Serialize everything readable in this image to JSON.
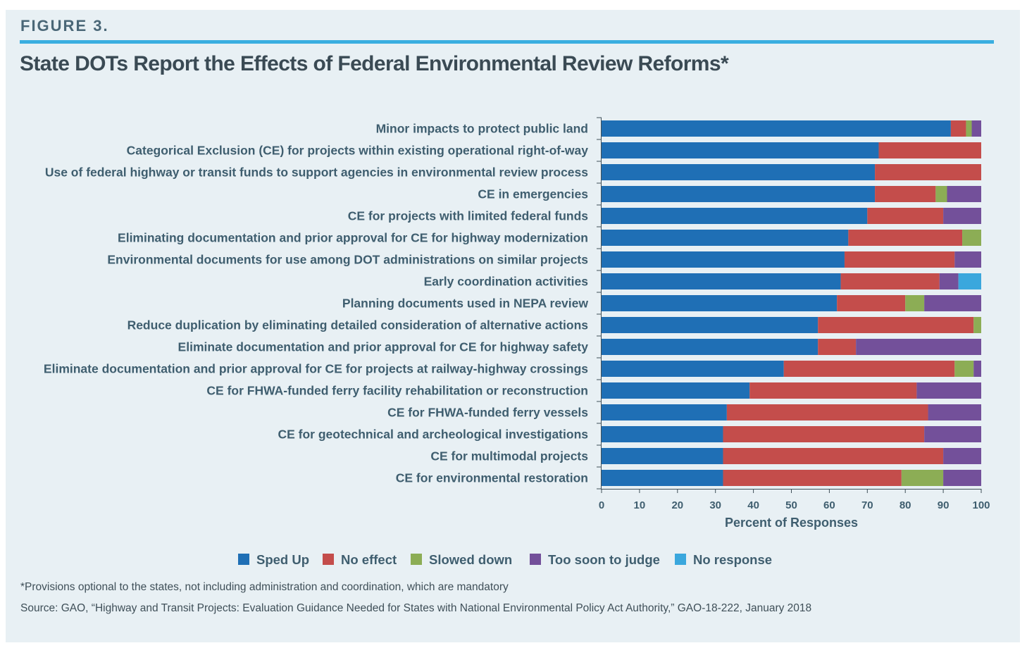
{
  "figure_label": "FIGURE 3.",
  "title": "State DOTs Report the Effects of Federal Environmental Review Reforms*",
  "footnote": "*Provisions optional to the states, not including administration and coordination, which are mandatory",
  "source": "Source: GAO, “Highway and Transit Projects: Evaluation Guidance Needed for States with National Environmental Policy Act Authority,” GAO-18-222, January 2018",
  "chart_data": {
    "type": "bar",
    "orientation": "horizontal",
    "stacked": true,
    "xlabel": "Percent of Responses",
    "xlim": [
      0,
      100
    ],
    "xticks": [
      0,
      10,
      20,
      30,
      40,
      50,
      60,
      70,
      80,
      90,
      100
    ],
    "legend_position": "bottom",
    "categories": [
      "Minor impacts to protect public land",
      "Categorical Exclusion (CE) for projects within existing operational right-of-way",
      "Use of federal highway or transit funds to support agencies in environmental review process",
      "CE in emergencies",
      "CE for projects with limited federal funds",
      "Eliminating documentation and prior approval for CE for highway modernization",
      "Environmental documents for use among DOT administrations on similar projects",
      "Early coordination activities",
      "Planning documents used in NEPA review",
      "Reduce duplication by eliminating detailed consideration of alternative actions",
      "Eliminate documentation and prior approval for CE for highway safety",
      "Eliminate documentation and prior approval for CE for projects at railway-highway crossings",
      "CE for FHWA-funded ferry facility rehabilitation or reconstruction",
      "CE for FHWA-funded ferry vessels",
      "CE for geotechnical and archeological investigations",
      "CE for multimodal projects",
      "CE for environmental restoration"
    ],
    "series": [
      {
        "name": "Sped Up",
        "color": "#1f6fb5",
        "values": [
          92,
          73,
          72,
          72,
          70,
          65,
          64,
          63,
          62,
          57,
          57,
          48,
          39,
          33,
          32,
          32,
          32
        ]
      },
      {
        "name": "No effect",
        "color": "#c44d4b",
        "values": [
          4,
          27,
          28,
          16,
          20,
          30,
          29,
          26,
          18,
          41,
          10,
          45,
          44,
          53,
          53,
          58,
          47
        ]
      },
      {
        "name": "Slowed down",
        "color": "#8cad55",
        "values": [
          1.5,
          0,
          0,
          3,
          0,
          5,
          0,
          0,
          5,
          2,
          0,
          5,
          0,
          0,
          0,
          0,
          11
        ]
      },
      {
        "name": "Too soon to judge",
        "color": "#73509a",
        "values": [
          2.5,
          0,
          0,
          9,
          10,
          0,
          7,
          5,
          15,
          0,
          33,
          2,
          17,
          14,
          15,
          10,
          10
        ]
      },
      {
        "name": "No response",
        "color": "#3aa7dd",
        "values": [
          0,
          0,
          0,
          0,
          0,
          0,
          0,
          6,
          0,
          0,
          0,
          0,
          0,
          0,
          0,
          0,
          0
        ]
      }
    ]
  }
}
